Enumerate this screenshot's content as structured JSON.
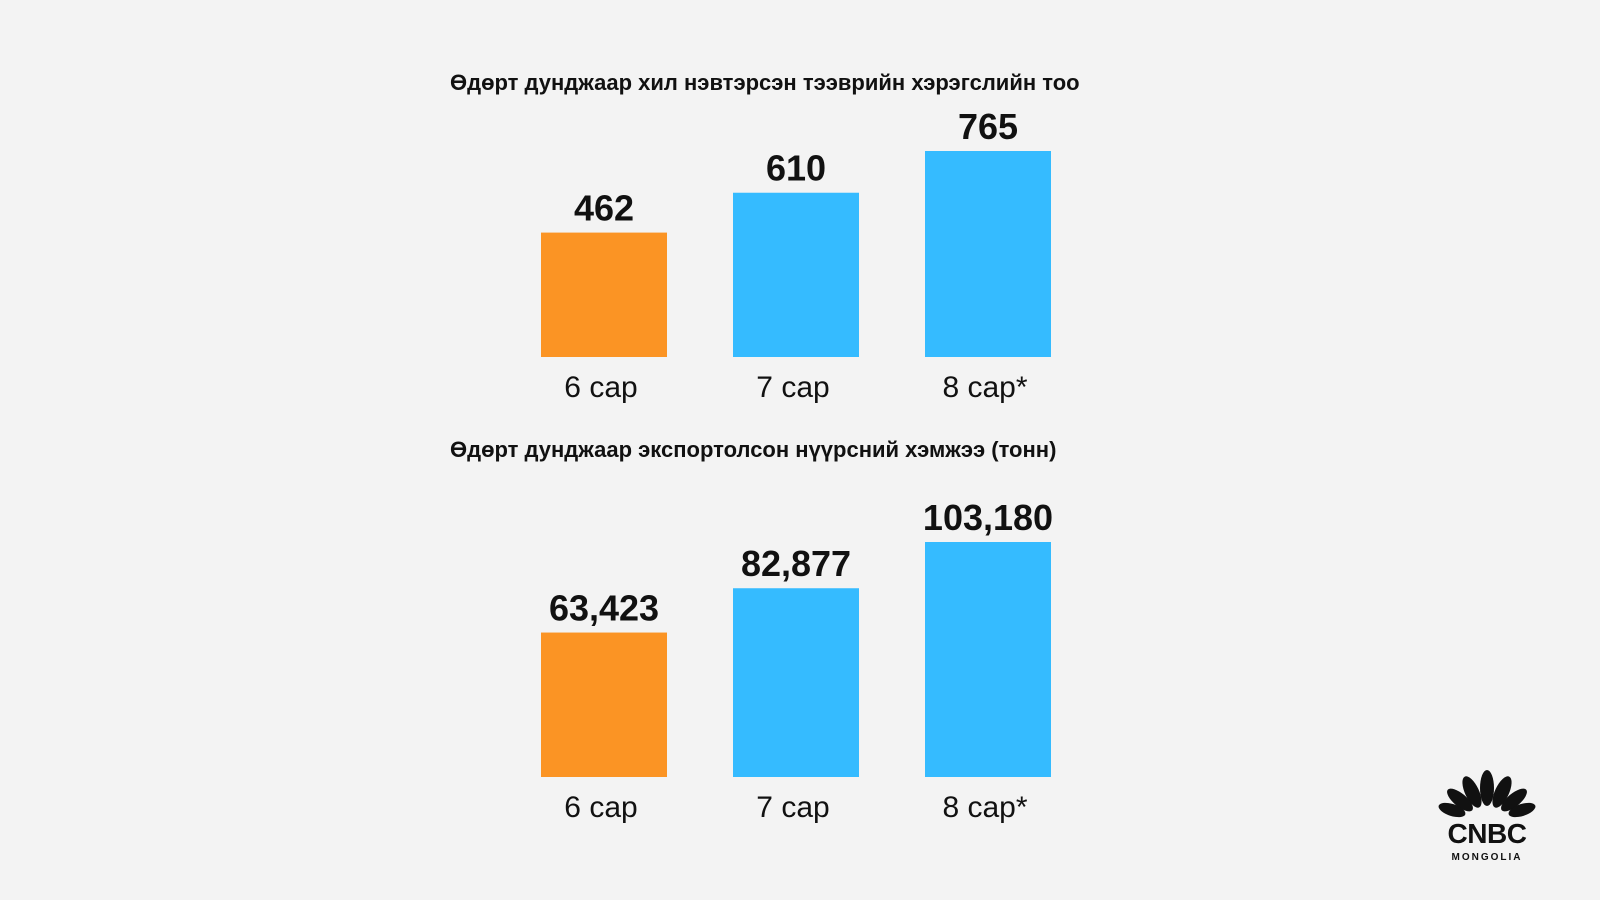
{
  "colors": {
    "background": "#f3f3f3",
    "highlight": "#fb9424",
    "primary": "#35bbff",
    "text": "#111111"
  },
  "logo": {
    "icon": "nbc-peacock-icon",
    "brand": "CNBC",
    "sub": "MONGOLIA"
  },
  "chart_data": [
    {
      "type": "bar",
      "title": "Өдөрт дунджаар хил нэвтэрсэн тээврийн хэрэгслийн тоо",
      "categories": [
        "6 сар",
        "7 сар",
        "8 сар*"
      ],
      "values": [
        462,
        610,
        765
      ],
      "value_labels": [
        "462",
        "610",
        "765"
      ],
      "bar_colors": [
        "#fb9424",
        "#35bbff",
        "#35bbff"
      ],
      "ylim": [
        0,
        765
      ],
      "grid": false,
      "legend": "none"
    },
    {
      "type": "bar",
      "title": "Өдөрт дунджаар экспортолсон нүүрсний хэмжээ (тонн)",
      "categories": [
        "6 сар",
        "7 сар",
        "8 сар*"
      ],
      "values": [
        63423,
        82877,
        103180
      ],
      "value_labels": [
        "63,423",
        "82,877",
        "103,180"
      ],
      "bar_colors": [
        "#fb9424",
        "#35bbff",
        "#35bbff"
      ],
      "ylim": [
        0,
        103180
      ],
      "grid": false,
      "legend": "none"
    }
  ]
}
